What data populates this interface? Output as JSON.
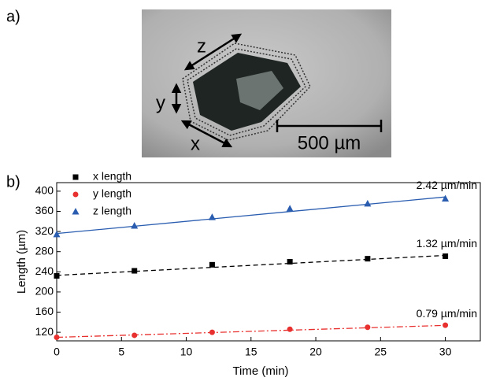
{
  "panel_labels": [
    "a)",
    "b)"
  ],
  "image": {
    "labels": [
      "z",
      "y",
      "x"
    ],
    "scale_bar": "500 µm"
  },
  "chart_data": {
    "type": "scatter",
    "xlabel": "Time (min)",
    "ylabel": "Length (µm)",
    "xlim": [
      0,
      32.7
    ],
    "xticks": [
      0,
      5,
      10,
      15,
      20,
      25,
      30
    ],
    "ylim": [
      103,
      417
    ],
    "yticks": [
      120,
      160,
      200,
      240,
      280,
      320,
      360,
      400
    ],
    "x": [
      0,
      6,
      12,
      18,
      24,
      30
    ],
    "series": [
      {
        "name": "x length",
        "color": "#000000",
        "marker": "square",
        "dash": "6,4",
        "values": [
          232,
          242,
          254,
          260,
          266,
          271
        ],
        "fit_intercept": 233,
        "fit_slope": 1.32,
        "fit_label": "1.32 µm/min"
      },
      {
        "name": "y length",
        "color": "#e8312f",
        "marker": "circle",
        "dash": "8,3,2,3",
        "values": [
          110,
          114,
          120,
          126,
          130,
          134
        ],
        "fit_intercept": 110,
        "fit_slope": 0.79,
        "fit_label": "0.79 µm/min"
      },
      {
        "name": "z length",
        "color": "#2a5db0",
        "marker": "triangle",
        "dash": "none",
        "values": [
          314,
          331,
          348,
          365,
          375,
          385
        ],
        "fit_intercept": 316,
        "fit_slope": 2.42,
        "fit_label": "2.42 µm/min"
      }
    ]
  }
}
